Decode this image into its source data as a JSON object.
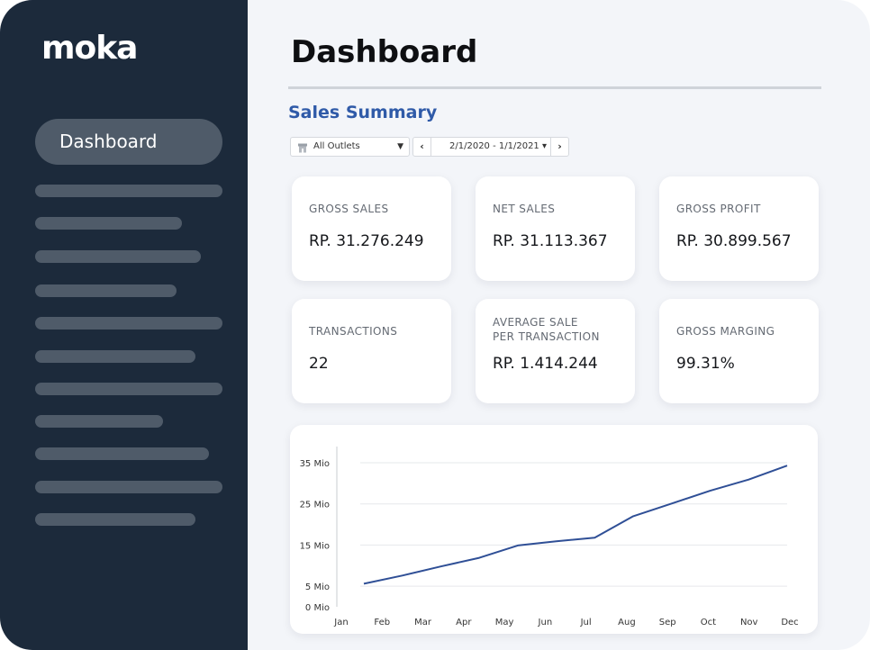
{
  "sidebar": {
    "logo": "moka",
    "active_item": "Dashboard",
    "placeholder_bar_count": 11
  },
  "header": {
    "title": "Dashboard"
  },
  "sales_summary": {
    "title": "Sales Summary",
    "outlet_select": {
      "value": "All Outlets",
      "icon": "store-icon"
    },
    "date_range": {
      "value": "2/1/2020 - 1/1/2021",
      "prev_icon": "chevron-left-icon",
      "next_icon": "chevron-right-icon"
    }
  },
  "metrics": [
    {
      "label": "GROSS SALES",
      "value": "RP. 31.276.249"
    },
    {
      "label": "NET SALES",
      "value": "RP. 31.113.367"
    },
    {
      "label": "GROSS PROFIT",
      "value": "RP. 30.899.567"
    },
    {
      "label": "TRANSACTIONS",
      "value": "22"
    },
    {
      "label": "AVERAGE SALE\nPER TRANSACTION",
      "value": "RP. 1.414.244"
    },
    {
      "label": "GROSS MARGING",
      "value": "99.31%"
    }
  ],
  "colors": {
    "sidebar_bg": "#1c2a3b",
    "accent": "#2f5aa8",
    "line": "#2f4f96"
  },
  "chart_data": {
    "type": "line",
    "categories": [
      "Jan",
      "Feb",
      "Mar",
      "Apr",
      "May",
      "Jun",
      "Jul",
      "Aug",
      "Sep",
      "Oct",
      "Nov",
      "Dec"
    ],
    "series": [
      {
        "values": [
          5.6,
          7.6,
          9.8,
          11.9,
          14.9,
          15.9,
          16.8,
          22.0,
          25.1,
          28.2,
          30.9,
          34.3
        ]
      }
    ],
    "y_ticks": [
      "0 Mio",
      "5 Mio",
      "15 Mio",
      "25 Mio",
      "35 Mio"
    ],
    "y_tick_values": [
      0,
      5,
      15,
      25,
      35
    ],
    "ylim": [
      0,
      35
    ],
    "grid": true,
    "title": "",
    "xlabel": "",
    "ylabel": ""
  }
}
